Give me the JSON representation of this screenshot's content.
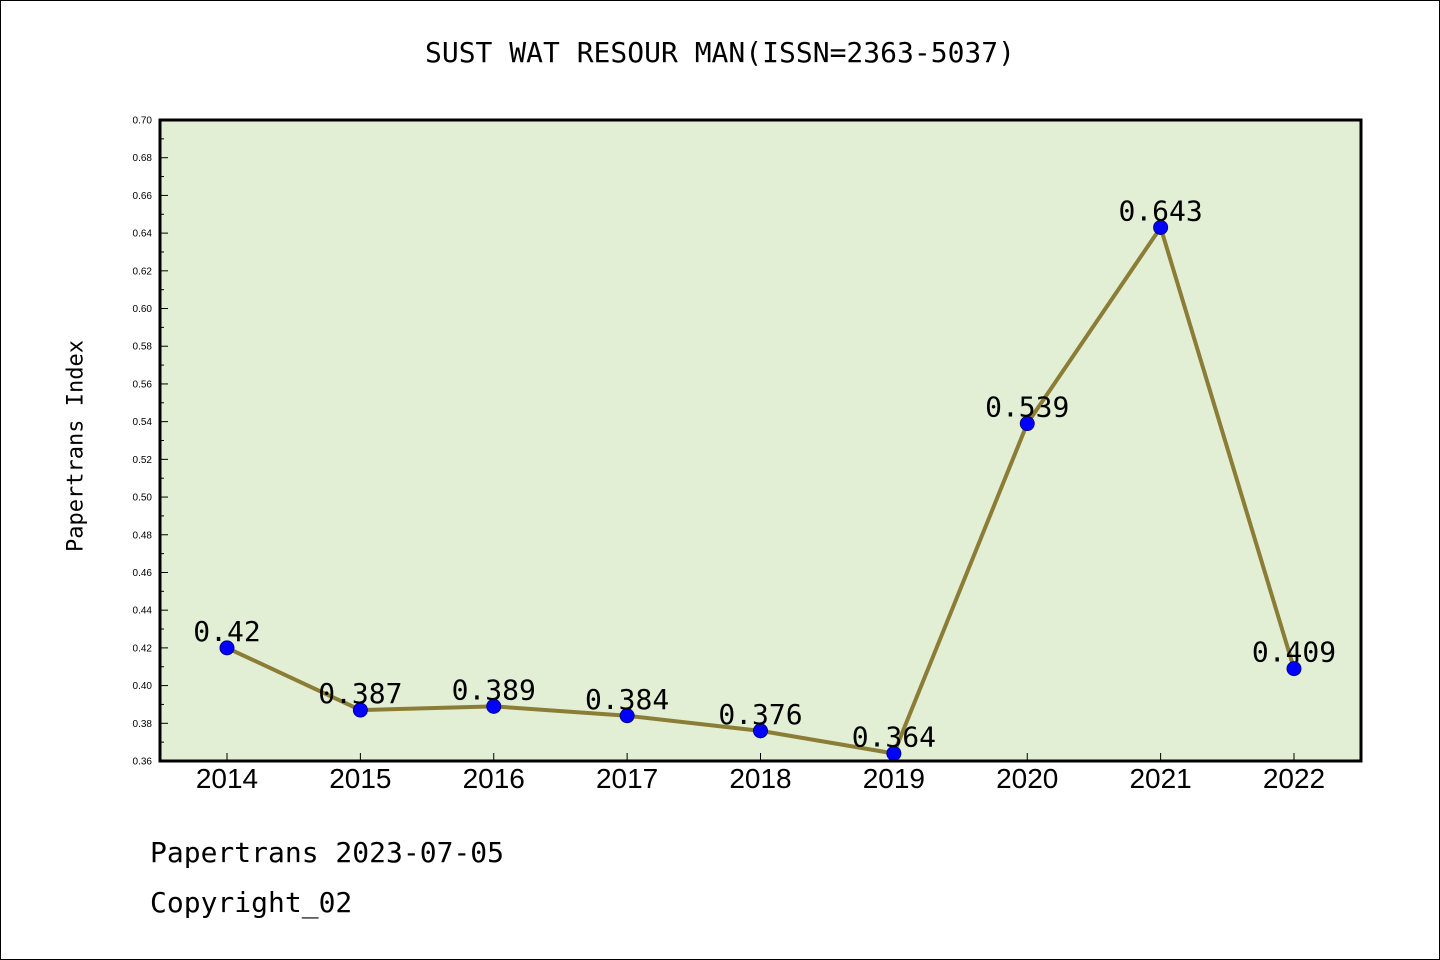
{
  "chart_data": {
    "type": "line",
    "title": "SUST WAT RESOUR MAN(ISSN=2363-5037)",
    "xlabel": "",
    "ylabel": "Papertrans Index",
    "categories": [
      "2014",
      "2015",
      "2016",
      "2017",
      "2018",
      "2019",
      "2020",
      "2021",
      "2022"
    ],
    "series": [
      {
        "values": [
          0.42,
          0.387,
          0.389,
          0.384,
          0.376,
          0.364,
          0.539,
          0.643,
          0.409
        ],
        "labels": [
          "0.42",
          "0.387",
          "0.389",
          "0.384",
          "0.376",
          "0.364",
          "0.539",
          "0.643",
          "0.409"
        ]
      }
    ],
    "ylim": [
      0.36,
      0.7
    ],
    "yticks": [
      "0.36",
      "0.38",
      "0.40",
      "0.42",
      "0.44",
      "0.46",
      "0.48",
      "0.50",
      "0.52",
      "0.54",
      "0.56",
      "0.58",
      "0.60",
      "0.62",
      "0.64",
      "0.66",
      "0.68",
      "0.70"
    ],
    "grid": false,
    "colors": {
      "plot_bg": "#e2efd5",
      "line": "#8b7d35",
      "marker": "#0000ff"
    }
  },
  "footer": {
    "line1": "Papertrans 2023-07-05",
    "line2": "Copyright_02"
  }
}
